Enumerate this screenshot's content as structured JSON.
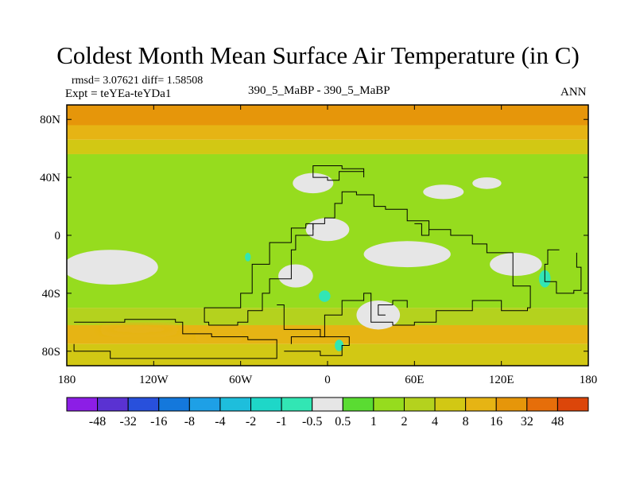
{
  "chart_data": {
    "type": "heatmap",
    "title": "Coldest Month Mean Surface Air Temperature (in C)",
    "subtitle_center": "390_5_MaBP - 390_5_MaBP",
    "label_right": "ANN",
    "stats_line": "rmsd= 3.07621  diff= 1.58508",
    "expt_line": "Expt = teYEa-teYDa1",
    "x_axis": {
      "range": [
        -180,
        180
      ],
      "ticks": [
        -180,
        -120,
        -60,
        0,
        60,
        120,
        180
      ],
      "tick_labels": [
        "180",
        "120W",
        "60W",
        "0",
        "60E",
        "120E",
        "180"
      ]
    },
    "y_axis": {
      "range": [
        -90,
        90
      ],
      "ticks": [
        80,
        40,
        0,
        -40,
        -80
      ],
      "tick_labels": [
        "80N",
        "40N",
        "0",
        "40S",
        "80S"
      ]
    },
    "color_bins": [
      {
        "color": "#8c1ee6"
      },
      {
        "color": "#5a32d2"
      },
      {
        "color": "#2850dc"
      },
      {
        "color": "#1478dc"
      },
      {
        "color": "#1ea0e6"
      },
      {
        "color": "#1ebedc"
      },
      {
        "color": "#1ed7c8"
      },
      {
        "color": "#32e6b4"
      },
      {
        "color": "#e6e6e6"
      },
      {
        "color": "#5adc32"
      },
      {
        "color": "#96dc1e"
      },
      {
        "color": "#b4d21e"
      },
      {
        "color": "#d2c814"
      },
      {
        "color": "#e6b414"
      },
      {
        "color": "#e6960a"
      },
      {
        "color": "#e66e0a"
      },
      {
        "color": "#dc460a"
      }
    ],
    "colorbar_labels": [
      "-48",
      "-32",
      "-16",
      "-8",
      "-4",
      "-2",
      "-1",
      "-0.5",
      "0.5",
      "1",
      "2",
      "4",
      "8",
      "16",
      "32",
      "48"
    ],
    "bands": [
      {
        "lat": [
          90,
          76
        ],
        "value": 20
      },
      {
        "lat": [
          76,
          66
        ],
        "value": 10
      },
      {
        "lat": [
          66,
          56
        ],
        "value": 5
      },
      {
        "lat": [
          56,
          -50
        ],
        "value": 1.5
      },
      {
        "lat": [
          -50,
          -62
        ],
        "value": 3
      },
      {
        "lat": [
          -62,
          -75
        ],
        "value": 10
      },
      {
        "lat": [
          -75,
          -90
        ],
        "value": 5
      }
    ],
    "near_zero_regions": [
      {
        "center": [
          -150,
          -22
        ],
        "radius": [
          33,
          12
        ]
      },
      {
        "center": [
          -10,
          36
        ],
        "radius": [
          14,
          7
        ]
      },
      {
        "center": [
          0,
          4
        ],
        "radius": [
          15,
          8
        ]
      },
      {
        "center": [
          55,
          -13
        ],
        "radius": [
          30,
          9
        ]
      },
      {
        "center": [
          130,
          -20
        ],
        "radius": [
          18,
          8
        ]
      },
      {
        "center": [
          80,
          30
        ],
        "radius": [
          14,
          5
        ]
      },
      {
        "center": [
          110,
          36
        ],
        "radius": [
          10,
          4
        ]
      },
      {
        "center": [
          35,
          -55
        ],
        "radius": [
          15,
          10
        ]
      },
      {
        "center": [
          -22,
          -28
        ],
        "radius": [
          12,
          8
        ]
      }
    ],
    "cooling_regions": [
      {
        "center": [
          150,
          -30
        ],
        "radius": [
          4,
          6
        ]
      },
      {
        "center": [
          -2,
          -42
        ],
        "radius": [
          4,
          4
        ]
      },
      {
        "center": [
          -55,
          -15
        ],
        "radius": [
          2,
          3
        ]
      },
      {
        "center": [
          8,
          -76
        ],
        "radius": [
          3,
          4
        ]
      }
    ],
    "warm_regions": [
      {
        "center": [
          -130,
          -65
        ],
        "radius": [
          28,
          4
        ]
      },
      {
        "center": [
          -75,
          -70
        ],
        "radius": [
          18,
          3
        ]
      }
    ],
    "coast_polylines": [
      [
        [
          -10,
          46
        ],
        [
          -10,
          40
        ],
        [
          0,
          38
        ],
        [
          8,
          44
        ],
        [
          15,
          44
        ],
        [
          25,
          40
        ],
        [
          25,
          46
        ],
        [
          10,
          48
        ],
        [
          -2,
          48
        ],
        [
          -10,
          46
        ]
      ],
      [
        [
          -15,
          8
        ],
        [
          -10,
          0
        ],
        [
          -22,
          -10
        ],
        [
          -25,
          -30
        ],
        [
          -40,
          -40
        ],
        [
          -45,
          -52
        ],
        [
          -55,
          -60
        ],
        [
          -62,
          -62
        ],
        [
          -82,
          -60
        ],
        [
          -85,
          -50
        ],
        [
          -60,
          -40
        ],
        [
          -52,
          -20
        ],
        [
          -40,
          -5
        ],
        [
          -25,
          5
        ],
        [
          -15,
          8
        ]
      ],
      [
        [
          -35,
          -48
        ],
        [
          -30,
          -65
        ],
        [
          -5,
          -70
        ],
        [
          -2,
          -55
        ],
        [
          10,
          -45
        ],
        [
          25,
          -40
        ],
        [
          30,
          -60
        ],
        [
          45,
          -62
        ],
        [
          60,
          -60
        ],
        [
          75,
          -52
        ],
        [
          100,
          -45
        ],
        [
          120,
          -52
        ],
        [
          138,
          -50
        ],
        [
          140,
          -35
        ],
        [
          128,
          -12
        ],
        [
          110,
          -6
        ],
        [
          100,
          0
        ],
        [
          85,
          4
        ],
        [
          70,
          10
        ],
        [
          55,
          18
        ],
        [
          40,
          20
        ],
        [
          32,
          28
        ],
        [
          20,
          30
        ],
        [
          10,
          22
        ],
        [
          5,
          12
        ],
        [
          -2,
          8
        ],
        [
          -10,
          4
        ]
      ],
      [
        [
          160,
          -10
        ],
        [
          152,
          -20
        ],
        [
          150,
          -32
        ],
        [
          158,
          -40
        ],
        [
          170,
          -38
        ],
        [
          175,
          -22
        ],
        [
          172,
          -12
        ]
      ],
      [
        [
          -175,
          -60
        ],
        [
          -140,
          -58
        ],
        [
          -105,
          -60
        ],
        [
          -100,
          -68
        ],
        [
          -80,
          -70
        ],
        [
          -55,
          -72
        ],
        [
          -35,
          -78
        ],
        [
          -35,
          -85
        ],
        [
          -90,
          -85
        ],
        [
          -150,
          -80
        ],
        [
          -175,
          -75
        ]
      ],
      [
        [
          -30,
          -80
        ],
        [
          -5,
          -83
        ],
        [
          10,
          -76
        ],
        [
          15,
          -70
        ],
        [
          -5,
          -70
        ],
        [
          -25,
          -75
        ]
      ],
      [
        [
          40,
          -55
        ],
        [
          35,
          -48
        ],
        [
          45,
          -45
        ],
        [
          55,
          -50
        ]
      ],
      [
        [
          60,
          8
        ],
        [
          65,
          0
        ],
        [
          70,
          4
        ]
      ]
    ]
  }
}
